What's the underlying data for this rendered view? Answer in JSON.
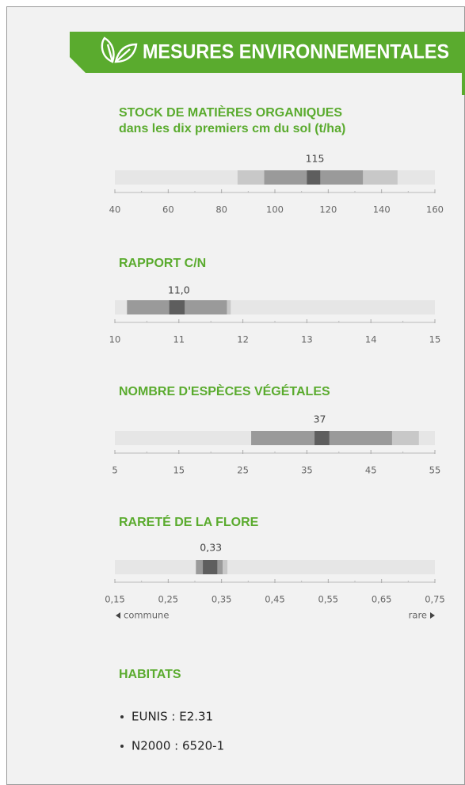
{
  "header": {
    "title": "MESURES ENVIRONNEMENTALES"
  },
  "chart_data": [
    {
      "type": "range",
      "title": "STOCK DE MATIÈRES ORGANIQUES",
      "subtitle": "dans les dix premiers cm du sol (t/ha)",
      "value": 115,
      "outer": [
        86,
        146
      ],
      "inner": [
        96,
        133
      ],
      "core": [
        112,
        117
      ],
      "xlim": [
        40,
        160
      ],
      "xticks": [
        40,
        60,
        80,
        100,
        120,
        140,
        160
      ],
      "xminor": [
        50,
        70,
        90,
        110,
        130,
        150
      ]
    },
    {
      "type": "range",
      "title": "RAPPORT C/N",
      "value": 11.0,
      "value_label": "11,0",
      "outer": [
        10.19,
        11.81
      ],
      "inner": [
        10.19,
        11.75
      ],
      "core": [
        10.85,
        11.09
      ],
      "xlim": [
        10,
        15
      ],
      "xticks": [
        10,
        11,
        12,
        13,
        14,
        15
      ],
      "xminor": [
        10.5,
        11.5,
        12.5,
        13.5,
        14.5
      ]
    },
    {
      "type": "range",
      "title": "NOMBRE D'ESPÈCES VÉGÉTALES",
      "value": 37,
      "outer": [
        26.3,
        52.5
      ],
      "inner": [
        26.3,
        48.3
      ],
      "core": [
        36.2,
        38.5
      ],
      "xlim": [
        5,
        55
      ],
      "xticks": [
        5,
        15,
        25,
        35,
        45,
        55
      ],
      "xminor": [
        10,
        20,
        30,
        40,
        50
      ]
    },
    {
      "type": "range",
      "title": "RARETÉ DE LA FLORE",
      "value": 0.33,
      "value_label": "0,33",
      "outer": [
        0.302,
        0.361
      ],
      "inner": [
        0.302,
        0.352
      ],
      "core": [
        0.315,
        0.342
      ],
      "xlim": [
        0.15,
        0.75
      ],
      "xticks": [
        {
          "value": 0.15,
          "label": "0,15"
        },
        {
          "value": 0.25,
          "label": "0,25"
        },
        {
          "value": 0.35,
          "label": "0,35"
        },
        {
          "value": 0.45,
          "label": "0,45"
        },
        {
          "value": 0.55,
          "label": "0,55"
        },
        {
          "value": 0.65,
          "label": "0,65"
        },
        {
          "value": 0.75,
          "label": "0,75"
        }
      ],
      "xminor": [
        0.2,
        0.3,
        0.4,
        0.5,
        0.6,
        0.7
      ],
      "annotations": [
        "commune",
        "rare"
      ]
    }
  ],
  "habitats": {
    "title": "HABITATS",
    "items": [
      "EUNIS : E2.31",
      "N2000 : 6520-1"
    ]
  }
}
